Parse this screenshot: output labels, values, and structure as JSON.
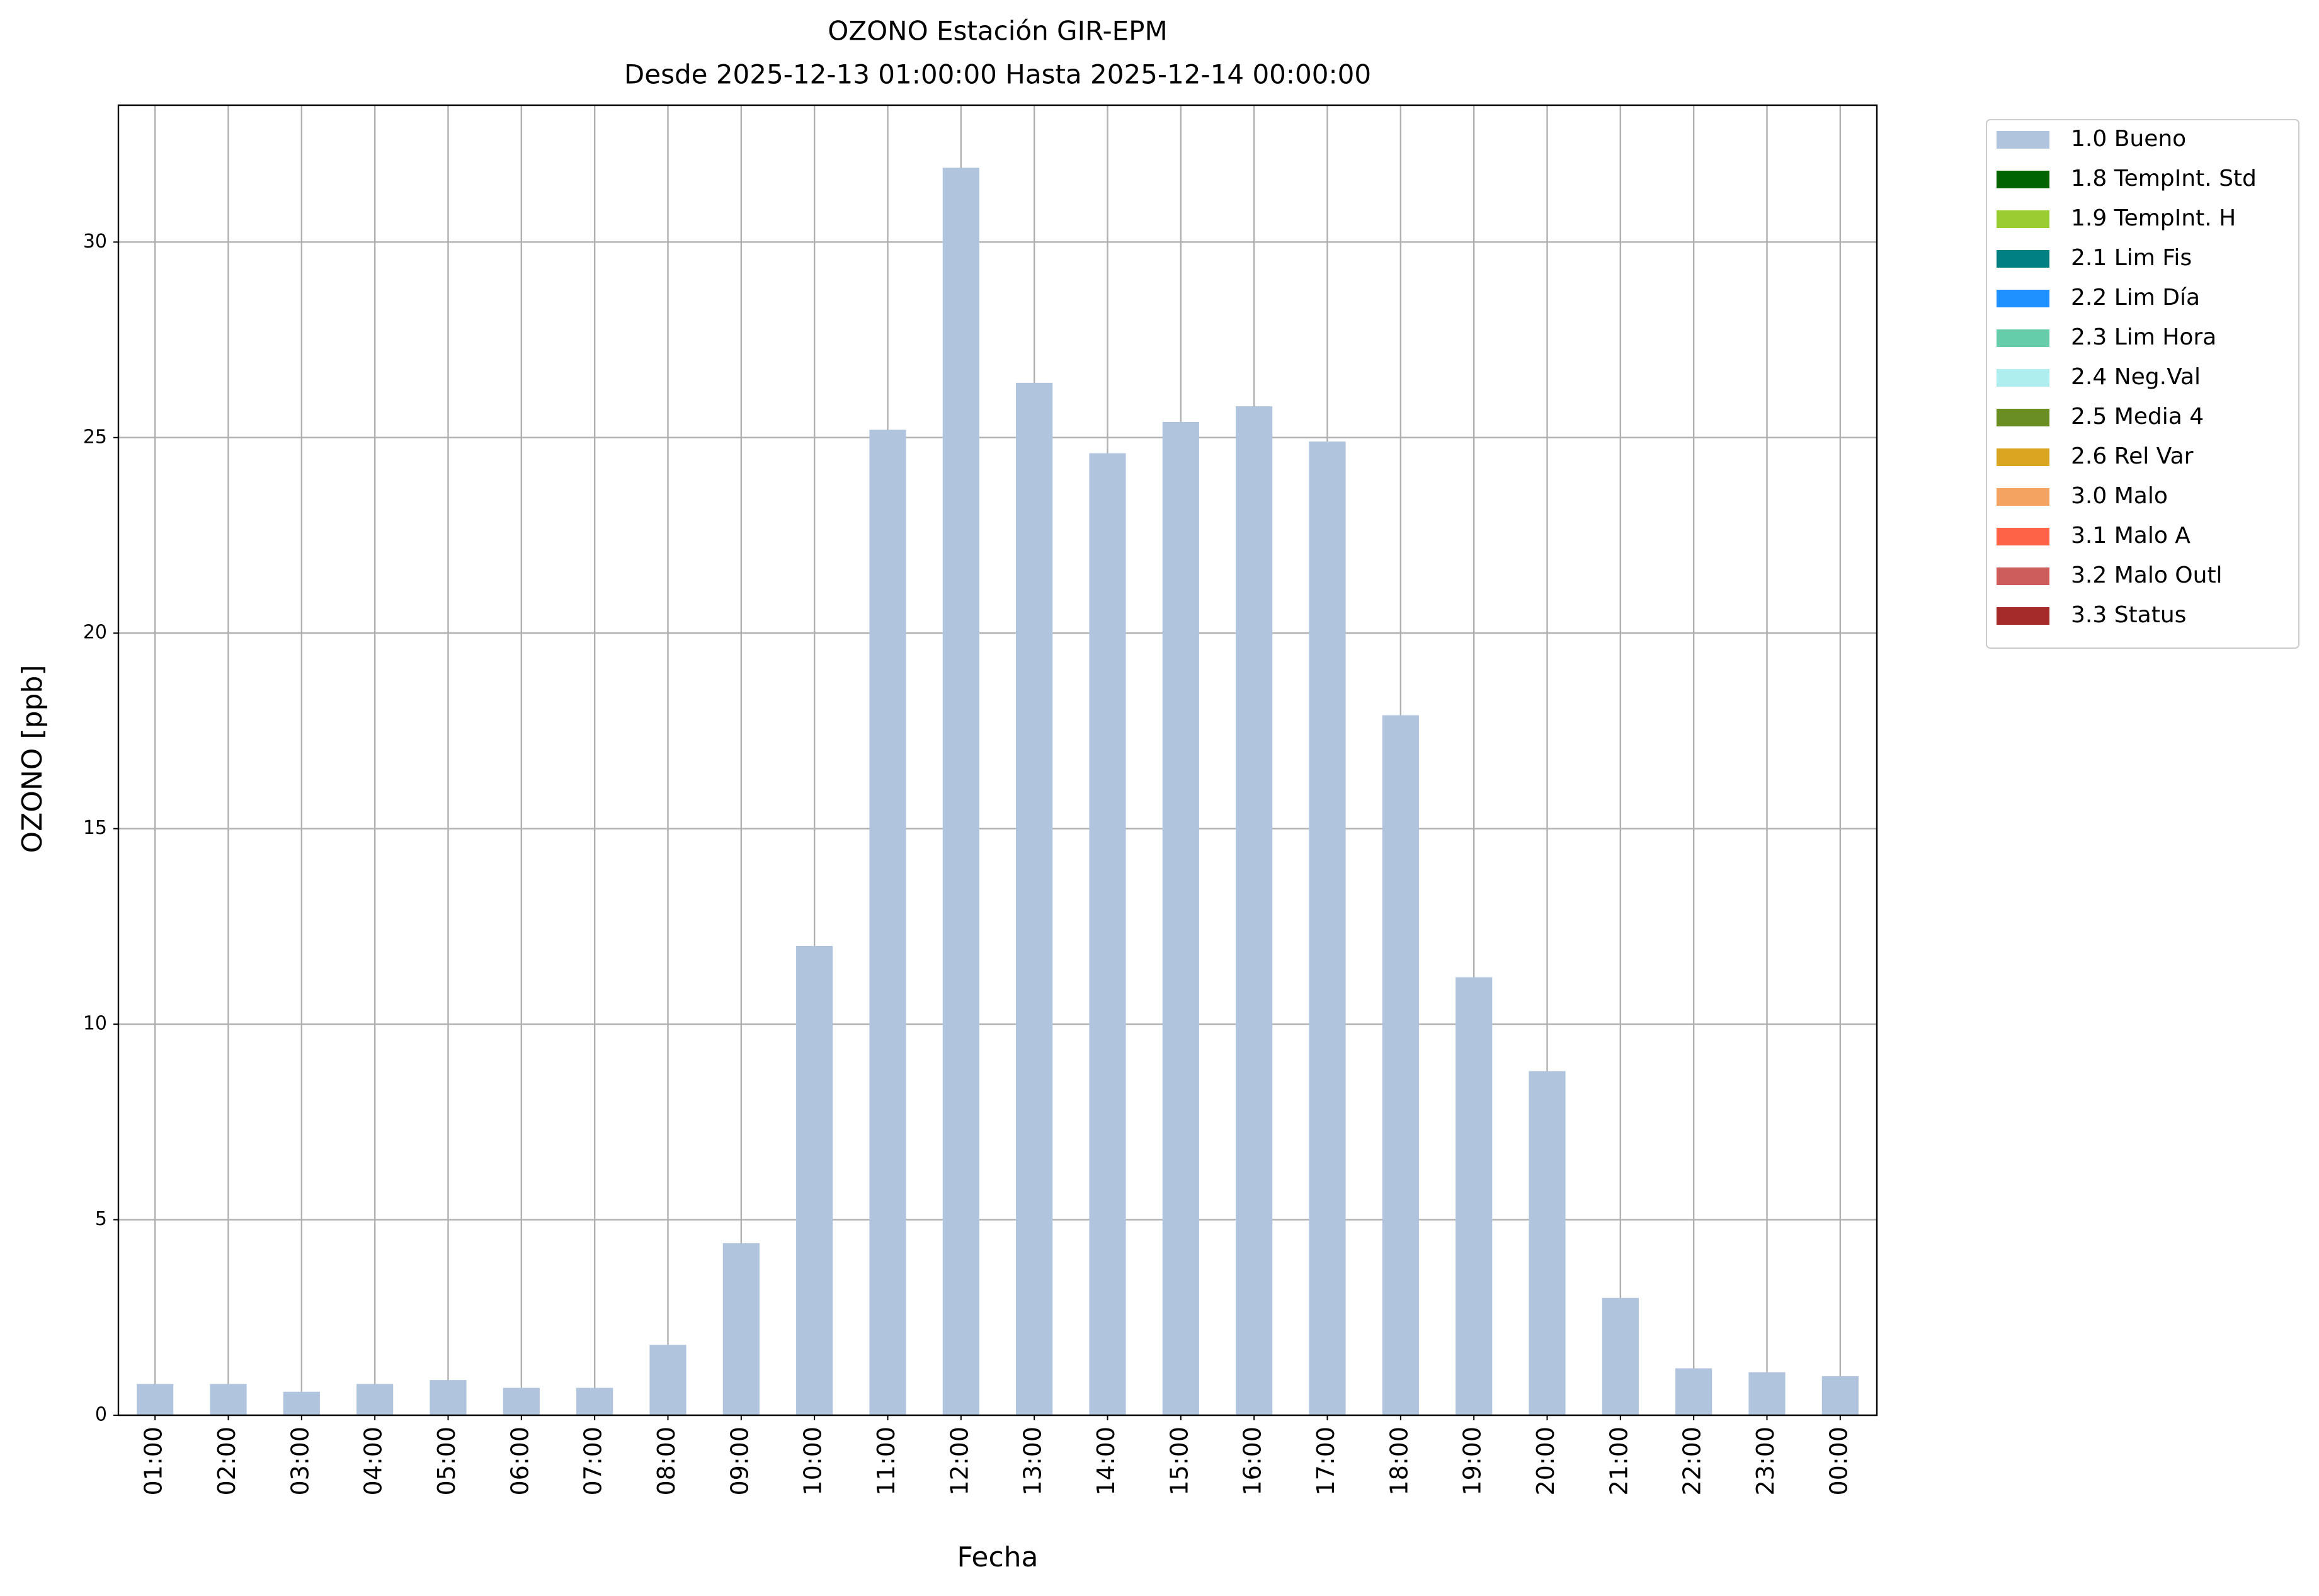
{
  "chart_data": {
    "type": "bar",
    "title": "OZONO Estación GIR-EPM",
    "subtitle": "Desde 2025-12-13 01:00:00 Hasta 2025-12-14 00:00:00",
    "x_label": "Fecha",
    "y_label": "OZONO [ppb]",
    "categories": [
      "01:00",
      "02:00",
      "03:00",
      "04:00",
      "05:00",
      "06:00",
      "07:00",
      "08:00",
      "09:00",
      "10:00",
      "11:00",
      "12:00",
      "13:00",
      "14:00",
      "15:00",
      "16:00",
      "17:00",
      "18:00",
      "19:00",
      "20:00",
      "21:00",
      "22:00",
      "23:00",
      "00:00"
    ],
    "series": [
      {
        "name": "1.0 Bueno",
        "color": "#b0c4de",
        "values": [
          0.8,
          0.8,
          0.6,
          0.8,
          0.9,
          0.7,
          0.7,
          1.8,
          4.4,
          12.0,
          25.2,
          31.9,
          26.4,
          24.6,
          25.4,
          25.8,
          24.9,
          17.9,
          11.2,
          8.8,
          3.0,
          1.2,
          1.1,
          1.0
        ]
      },
      {
        "name": "1.8 TempInt. Std",
        "color": "#006400",
        "values": [
          null,
          null,
          null,
          null,
          null,
          null,
          null,
          null,
          null,
          null,
          null,
          null,
          null,
          null,
          null,
          null,
          null,
          null,
          null,
          null,
          null,
          null,
          null,
          null
        ]
      },
      {
        "name": "1.9 TempInt. H",
        "color": "#9acd32",
        "values": [
          null,
          null,
          null,
          null,
          null,
          null,
          null,
          null,
          null,
          null,
          null,
          null,
          null,
          null,
          null,
          null,
          null,
          null,
          null,
          null,
          null,
          null,
          null,
          null
        ]
      },
      {
        "name": "2.1 Lim Fis",
        "color": "#008080",
        "values": [
          null,
          null,
          null,
          null,
          null,
          null,
          null,
          null,
          null,
          null,
          null,
          null,
          null,
          null,
          null,
          null,
          null,
          null,
          null,
          null,
          null,
          null,
          null,
          null
        ]
      },
      {
        "name": "2.2 Lim Día",
        "color": "#1e90ff",
        "values": [
          null,
          null,
          null,
          null,
          null,
          null,
          null,
          null,
          null,
          null,
          null,
          null,
          null,
          null,
          null,
          null,
          null,
          null,
          null,
          null,
          null,
          null,
          null,
          null
        ]
      },
      {
        "name": "2.3 Lim Hora",
        "color": "#66cdaa",
        "values": [
          null,
          null,
          null,
          null,
          null,
          null,
          null,
          null,
          null,
          null,
          null,
          null,
          null,
          null,
          null,
          null,
          null,
          null,
          null,
          null,
          null,
          null,
          null,
          null
        ]
      },
      {
        "name": "2.4 Neg.Val",
        "color": "#afeeee",
        "values": [
          null,
          null,
          null,
          null,
          null,
          null,
          null,
          null,
          null,
          null,
          null,
          null,
          null,
          null,
          null,
          null,
          null,
          null,
          null,
          null,
          null,
          null,
          null,
          null
        ]
      },
      {
        "name": "2.5 Media 4",
        "color": "#6b8e23",
        "values": [
          null,
          null,
          null,
          null,
          null,
          null,
          null,
          null,
          null,
          null,
          null,
          null,
          null,
          null,
          null,
          null,
          null,
          null,
          null,
          null,
          null,
          null,
          null,
          null
        ]
      },
      {
        "name": "2.6 Rel Var",
        "color": "#daa520",
        "values": [
          null,
          null,
          null,
          null,
          null,
          null,
          null,
          null,
          null,
          null,
          null,
          null,
          null,
          null,
          null,
          null,
          null,
          null,
          null,
          null,
          null,
          null,
          null,
          null
        ]
      },
      {
        "name": "3.0 Malo",
        "color": "#f4a460",
        "values": [
          null,
          null,
          null,
          null,
          null,
          null,
          null,
          null,
          null,
          null,
          null,
          null,
          null,
          null,
          null,
          null,
          null,
          null,
          null,
          null,
          null,
          null,
          null,
          null
        ]
      },
      {
        "name": "3.1 Malo A",
        "color": "#ff6347",
        "values": [
          null,
          null,
          null,
          null,
          null,
          null,
          null,
          null,
          null,
          null,
          null,
          null,
          null,
          null,
          null,
          null,
          null,
          null,
          null,
          null,
          null,
          null,
          null,
          null
        ]
      },
      {
        "name": "3.2 Malo Outl",
        "color": "#cd5c5c",
        "values": [
          null,
          null,
          null,
          null,
          null,
          null,
          null,
          null,
          null,
          null,
          null,
          null,
          null,
          null,
          null,
          null,
          null,
          null,
          null,
          null,
          null,
          null,
          null,
          null
        ]
      },
      {
        "name": "3.3 Status",
        "color": "#a52a2a",
        "values": [
          null,
          null,
          null,
          null,
          null,
          null,
          null,
          null,
          null,
          null,
          null,
          null,
          null,
          null,
          null,
          null,
          null,
          null,
          null,
          null,
          null,
          null,
          null,
          null
        ]
      }
    ],
    "ylim": [
      0,
      33.5
    ],
    "yticks": [
      0,
      5,
      10,
      15,
      20,
      25,
      30
    ],
    "grid": true,
    "legend": "outside-upper-right"
  }
}
